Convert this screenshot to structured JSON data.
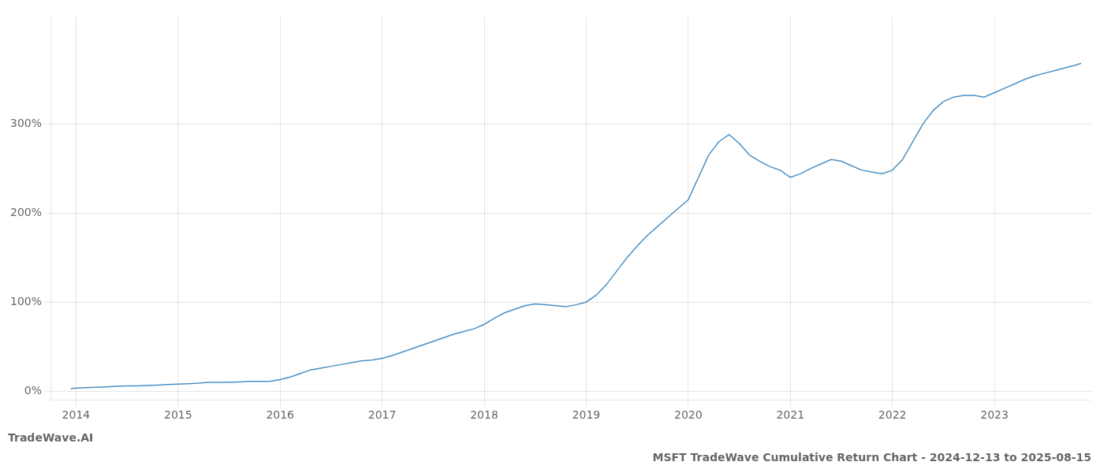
{
  "chart_data": {
    "type": "line",
    "title": "MSFT TradeWave Cumulative Return Chart - 2024-12-13 to 2025-08-15",
    "annotation": "TradeWave.AI",
    "color": "#4a90c4",
    "grid": true,
    "x": [
      2013.95,
      2014.0,
      2014.1,
      2014.2,
      2014.3,
      2014.4,
      2014.5,
      2014.6,
      2014.7,
      2014.8,
      2014.9,
      2015.0,
      2015.1,
      2015.2,
      2015.3,
      2015.4,
      2015.5,
      2015.6,
      2015.7,
      2015.8,
      2015.9,
      2016.0,
      2016.1,
      2016.2,
      2016.3,
      2016.4,
      2016.5,
      2016.6,
      2016.7,
      2016.8,
      2016.9,
      2017.0,
      2017.1,
      2017.2,
      2017.3,
      2017.4,
      2017.5,
      2017.6,
      2017.7,
      2017.8,
      2017.9,
      2018.0,
      2018.1,
      2018.2,
      2018.3,
      2018.4,
      2018.5,
      2018.6,
      2018.7,
      2018.8,
      2018.9,
      2019.0,
      2019.1,
      2019.2,
      2019.3,
      2019.4,
      2019.5,
      2019.6,
      2019.7,
      2019.8,
      2019.9,
      2020.0,
      2020.1,
      2020.2,
      2020.3,
      2020.4,
      2020.5,
      2020.6,
      2020.7,
      2020.8,
      2020.9,
      2021.0,
      2021.1,
      2021.2,
      2021.3,
      2021.4,
      2021.5,
      2021.6,
      2021.7,
      2021.8,
      2021.9,
      2022.0,
      2022.1,
      2022.2,
      2022.3,
      2022.4,
      2022.5,
      2022.6,
      2022.7,
      2022.8,
      2022.9,
      2023.0,
      2023.1,
      2023.2,
      2023.3,
      2023.4,
      2023.5,
      2023.6,
      2023.7,
      2023.8,
      2023.85
    ],
    "values": [
      3,
      3.5,
      4,
      4.5,
      5,
      5.5,
      6,
      6,
      6.5,
      7,
      7.5,
      8,
      8.5,
      9,
      10,
      10,
      10,
      10.5,
      11,
      11,
      11,
      13,
      16,
      20,
      24,
      26,
      28,
      30,
      32,
      34,
      35,
      37,
      40,
      44,
      48,
      52,
      56,
      60,
      64,
      67,
      70,
      75,
      82,
      88,
      92,
      96,
      98,
      97,
      96,
      95,
      97,
      100,
      108,
      120,
      135,
      150,
      163,
      175,
      185,
      195,
      205,
      215,
      240,
      265,
      280,
      288,
      278,
      265,
      258,
      252,
      248,
      240,
      244,
      250,
      255,
      260,
      258,
      253,
      248,
      246,
      244,
      248,
      260,
      280,
      300,
      315,
      325,
      330,
      332,
      332,
      330,
      335,
      340,
      345,
      350,
      354,
      357,
      360,
      363,
      366,
      368
    ],
    "xlim": [
      2013.75,
      2023.95
    ],
    "xticks": [
      2014,
      2015,
      2016,
      2017,
      2018,
      2019,
      2020,
      2021,
      2022,
      2023
    ],
    "ylim": [
      -10,
      420
    ],
    "yticks": [
      {
        "value": 0,
        "label": "0%"
      },
      {
        "value": 100,
        "label": "100%"
      },
      {
        "value": 200,
        "label": "200%"
      },
      {
        "value": 300,
        "label": "300%"
      }
    ]
  }
}
